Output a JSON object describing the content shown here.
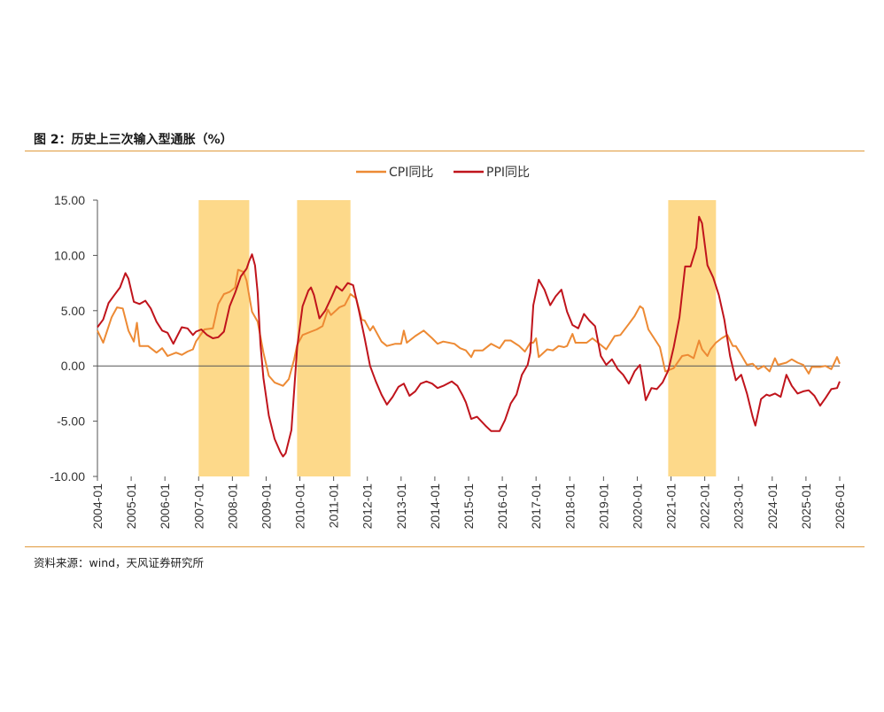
{
  "figure": {
    "title": "图 2：历史上三次输入型通胀（%）",
    "source": "资料来源：wind，天风证券研究所"
  },
  "colors": {
    "cpi": "#ed8a34",
    "ppi": "#c0141c",
    "shade": "#fdd98a",
    "rule": "#e09a3c"
  },
  "chart_data": {
    "type": "line",
    "title": "",
    "xlabel": "",
    "ylabel": "",
    "ylim": [
      -10,
      15
    ],
    "yticks": [
      "15.00",
      "10.00",
      "5.00",
      "0.00",
      "-5.00",
      "-10.00"
    ],
    "ytick_values": [
      15,
      10,
      5,
      0,
      -5,
      -10
    ],
    "xlim": [
      2004.0,
      2026.0
    ],
    "xticks": [
      "2004-01",
      "2005-01",
      "2006-01",
      "2007-01",
      "2008-01",
      "2009-01",
      "2010-01",
      "2011-01",
      "2012-01",
      "2013-01",
      "2014-01",
      "2015-01",
      "2016-01",
      "2017-01",
      "2018-01",
      "2019-01",
      "2020-01",
      "2021-01",
      "2022-01",
      "2023-01",
      "2024-01",
      "2025-01",
      "2026-01"
    ],
    "shaded_periods": [
      [
        2007.0,
        2008.5
      ],
      [
        2009.917,
        2011.5
      ],
      [
        2020.917,
        2022.333
      ]
    ],
    "legend": [
      "CPI同比",
      "PPI同比"
    ],
    "series": [
      {
        "name": "CPI同比",
        "points": [
          [
            2004.0,
            3.2
          ],
          [
            2004.17,
            2.1
          ],
          [
            2004.42,
            4.4
          ],
          [
            2004.58,
            5.3
          ],
          [
            2004.75,
            5.2
          ],
          [
            2004.92,
            3.2
          ],
          [
            2005.08,
            2.2
          ],
          [
            2005.17,
            3.9
          ],
          [
            2005.25,
            1.8
          ],
          [
            2005.5,
            1.8
          ],
          [
            2005.75,
            1.2
          ],
          [
            2005.92,
            1.6
          ],
          [
            2006.08,
            0.9
          ],
          [
            2006.33,
            1.2
          ],
          [
            2006.5,
            1.0
          ],
          [
            2006.67,
            1.3
          ],
          [
            2006.83,
            1.5
          ],
          [
            2006.92,
            2.2
          ],
          [
            2007.17,
            3.3
          ],
          [
            2007.42,
            3.4
          ],
          [
            2007.58,
            5.6
          ],
          [
            2007.75,
            6.5
          ],
          [
            2007.92,
            6.7
          ],
          [
            2008.08,
            7.1
          ],
          [
            2008.17,
            8.7
          ],
          [
            2008.33,
            8.5
          ],
          [
            2008.42,
            7.7
          ],
          [
            2008.58,
            4.9
          ],
          [
            2008.75,
            4.0
          ],
          [
            2008.92,
            1.2
          ],
          [
            2009.08,
            -0.9
          ],
          [
            2009.25,
            -1.5
          ],
          [
            2009.5,
            -1.8
          ],
          [
            2009.67,
            -1.2
          ],
          [
            2009.83,
            0.6
          ],
          [
            2009.92,
            1.9
          ],
          [
            2010.08,
            2.8
          ],
          [
            2010.33,
            3.1
          ],
          [
            2010.5,
            3.3
          ],
          [
            2010.67,
            3.6
          ],
          [
            2010.83,
            5.1
          ],
          [
            2010.92,
            4.6
          ],
          [
            2011.17,
            5.3
          ],
          [
            2011.33,
            5.5
          ],
          [
            2011.5,
            6.5
          ],
          [
            2011.67,
            6.1
          ],
          [
            2011.83,
            4.2
          ],
          [
            2011.92,
            4.1
          ],
          [
            2012.08,
            3.2
          ],
          [
            2012.17,
            3.6
          ],
          [
            2012.42,
            2.2
          ],
          [
            2012.58,
            1.8
          ],
          [
            2012.83,
            2.0
          ],
          [
            2013.0,
            2.0
          ],
          [
            2013.08,
            3.2
          ],
          [
            2013.17,
            2.1
          ],
          [
            2013.42,
            2.7
          ],
          [
            2013.67,
            3.2
          ],
          [
            2013.92,
            2.5
          ],
          [
            2014.08,
            2.0
          ],
          [
            2014.25,
            2.2
          ],
          [
            2014.58,
            2.0
          ],
          [
            2014.75,
            1.6
          ],
          [
            2014.92,
            1.4
          ],
          [
            2015.08,
            0.8
          ],
          [
            2015.17,
            1.4
          ],
          [
            2015.42,
            1.4
          ],
          [
            2015.67,
            2.0
          ],
          [
            2015.92,
            1.6
          ],
          [
            2016.08,
            2.3
          ],
          [
            2016.25,
            2.3
          ],
          [
            2016.5,
            1.8
          ],
          [
            2016.67,
            1.3
          ],
          [
            2016.83,
            2.1
          ],
          [
            2016.92,
            2.1
          ],
          [
            2017.0,
            2.5
          ],
          [
            2017.08,
            0.8
          ],
          [
            2017.33,
            1.5
          ],
          [
            2017.5,
            1.4
          ],
          [
            2017.67,
            1.8
          ],
          [
            2017.83,
            1.7
          ],
          [
            2017.92,
            1.8
          ],
          [
            2018.08,
            2.9
          ],
          [
            2018.17,
            2.1
          ],
          [
            2018.5,
            2.1
          ],
          [
            2018.67,
            2.5
          ],
          [
            2018.92,
            1.9
          ],
          [
            2019.08,
            1.5
          ],
          [
            2019.33,
            2.7
          ],
          [
            2019.5,
            2.8
          ],
          [
            2019.75,
            3.8
          ],
          [
            2019.92,
            4.5
          ],
          [
            2020.08,
            5.4
          ],
          [
            2020.17,
            5.2
          ],
          [
            2020.33,
            3.3
          ],
          [
            2020.5,
            2.5
          ],
          [
            2020.67,
            1.7
          ],
          [
            2020.83,
            -0.5
          ],
          [
            2021.0,
            -0.3
          ],
          [
            2021.08,
            -0.2
          ],
          [
            2021.33,
            0.9
          ],
          [
            2021.5,
            1.0
          ],
          [
            2021.67,
            0.7
          ],
          [
            2021.83,
            2.3
          ],
          [
            2021.92,
            1.5
          ],
          [
            2022.08,
            0.9
          ],
          [
            2022.17,
            1.5
          ],
          [
            2022.33,
            2.1
          ],
          [
            2022.5,
            2.5
          ],
          [
            2022.67,
            2.8
          ],
          [
            2022.83,
            1.8
          ],
          [
            2022.92,
            1.8
          ],
          [
            2023.08,
            1.0
          ],
          [
            2023.25,
            0.1
          ],
          [
            2023.42,
            0.2
          ],
          [
            2023.58,
            -0.3
          ],
          [
            2023.75,
            0.0
          ],
          [
            2023.92,
            -0.5
          ],
          [
            2024.08,
            0.7
          ],
          [
            2024.17,
            0.1
          ],
          [
            2024.42,
            0.3
          ],
          [
            2024.58,
            0.6
          ],
          [
            2024.75,
            0.3
          ],
          [
            2024.92,
            0.1
          ],
          [
            2025.08,
            -0.7
          ],
          [
            2025.17,
            -0.1
          ],
          [
            2025.42,
            -0.1
          ],
          [
            2025.58,
            0.0
          ],
          [
            2025.75,
            -0.3
          ],
          [
            2025.83,
            0.2
          ],
          [
            2025.92,
            0.8
          ],
          [
            2026.0,
            0.2
          ]
        ]
      },
      {
        "name": "PPI同比",
        "points": [
          [
            2004.0,
            3.5
          ],
          [
            2004.17,
            4.2
          ],
          [
            2004.33,
            5.7
          ],
          [
            2004.5,
            6.4
          ],
          [
            2004.67,
            7.1
          ],
          [
            2004.83,
            8.4
          ],
          [
            2004.92,
            7.9
          ],
          [
            2005.08,
            5.8
          ],
          [
            2005.25,
            5.6
          ],
          [
            2005.42,
            5.9
          ],
          [
            2005.58,
            5.2
          ],
          [
            2005.75,
            4.0
          ],
          [
            2005.92,
            3.2
          ],
          [
            2006.08,
            3.0
          ],
          [
            2006.25,
            2.0
          ],
          [
            2006.33,
            2.5
          ],
          [
            2006.5,
            3.5
          ],
          [
            2006.67,
            3.4
          ],
          [
            2006.83,
            2.8
          ],
          [
            2006.92,
            3.1
          ],
          [
            2007.08,
            3.3
          ],
          [
            2007.25,
            2.8
          ],
          [
            2007.42,
            2.5
          ],
          [
            2007.58,
            2.6
          ],
          [
            2007.75,
            3.1
          ],
          [
            2007.92,
            5.4
          ],
          [
            2008.08,
            6.6
          ],
          [
            2008.25,
            8.1
          ],
          [
            2008.42,
            8.8
          ],
          [
            2008.5,
            9.5
          ],
          [
            2008.58,
            10.1
          ],
          [
            2008.67,
            9.1
          ],
          [
            2008.75,
            6.6
          ],
          [
            2008.83,
            2.0
          ],
          [
            2008.92,
            -1.1
          ],
          [
            2009.08,
            -4.5
          ],
          [
            2009.25,
            -6.6
          ],
          [
            2009.42,
            -7.8
          ],
          [
            2009.5,
            -8.2
          ],
          [
            2009.58,
            -7.9
          ],
          [
            2009.75,
            -5.8
          ],
          [
            2009.92,
            1.7
          ],
          [
            2010.08,
            5.4
          ],
          [
            2010.25,
            6.8
          ],
          [
            2010.33,
            7.1
          ],
          [
            2010.42,
            6.4
          ],
          [
            2010.58,
            4.3
          ],
          [
            2010.75,
            5.0
          ],
          [
            2010.92,
            6.1
          ],
          [
            2011.08,
            7.2
          ],
          [
            2011.25,
            6.8
          ],
          [
            2011.42,
            7.5
          ],
          [
            2011.58,
            7.3
          ],
          [
            2011.75,
            5.0
          ],
          [
            2011.92,
            2.5
          ],
          [
            2012.08,
            0.0
          ],
          [
            2012.25,
            -1.4
          ],
          [
            2012.42,
            -2.6
          ],
          [
            2012.58,
            -3.5
          ],
          [
            2012.75,
            -2.8
          ],
          [
            2012.92,
            -1.9
          ],
          [
            2013.08,
            -1.6
          ],
          [
            2013.25,
            -2.7
          ],
          [
            2013.42,
            -2.3
          ],
          [
            2013.58,
            -1.6
          ],
          [
            2013.75,
            -1.4
          ],
          [
            2013.92,
            -1.6
          ],
          [
            2014.08,
            -2.0
          ],
          [
            2014.25,
            -1.8
          ],
          [
            2014.5,
            -1.4
          ],
          [
            2014.67,
            -1.8
          ],
          [
            2014.83,
            -2.7
          ],
          [
            2014.92,
            -3.3
          ],
          [
            2015.08,
            -4.8
          ],
          [
            2015.25,
            -4.6
          ],
          [
            2015.5,
            -5.4
          ],
          [
            2015.67,
            -5.9
          ],
          [
            2015.92,
            -5.9
          ],
          [
            2016.08,
            -4.9
          ],
          [
            2016.25,
            -3.4
          ],
          [
            2016.42,
            -2.6
          ],
          [
            2016.58,
            -0.8
          ],
          [
            2016.75,
            0.1
          ],
          [
            2016.83,
            1.2
          ],
          [
            2016.92,
            5.5
          ],
          [
            2017.08,
            7.8
          ],
          [
            2017.25,
            6.9
          ],
          [
            2017.42,
            5.5
          ],
          [
            2017.58,
            6.3
          ],
          [
            2017.75,
            6.9
          ],
          [
            2017.92,
            4.9
          ],
          [
            2018.08,
            3.7
          ],
          [
            2018.25,
            3.4
          ],
          [
            2018.42,
            4.7
          ],
          [
            2018.58,
            4.1
          ],
          [
            2018.75,
            3.6
          ],
          [
            2018.92,
            0.9
          ],
          [
            2019.08,
            0.1
          ],
          [
            2019.25,
            0.6
          ],
          [
            2019.42,
            -0.3
          ],
          [
            2019.58,
            -0.8
          ],
          [
            2019.75,
            -1.6
          ],
          [
            2019.92,
            -0.5
          ],
          [
            2020.08,
            0.1
          ],
          [
            2020.17,
            -1.5
          ],
          [
            2020.25,
            -3.1
          ],
          [
            2020.42,
            -2.0
          ],
          [
            2020.58,
            -2.1
          ],
          [
            2020.75,
            -1.5
          ],
          [
            2020.92,
            -0.4
          ],
          [
            2021.08,
            1.7
          ],
          [
            2021.25,
            4.4
          ],
          [
            2021.42,
            9.0
          ],
          [
            2021.58,
            9.0
          ],
          [
            2021.75,
            10.7
          ],
          [
            2021.83,
            13.5
          ],
          [
            2021.92,
            12.9
          ],
          [
            2022.08,
            9.1
          ],
          [
            2022.25,
            8.0
          ],
          [
            2022.42,
            6.4
          ],
          [
            2022.58,
            4.2
          ],
          [
            2022.75,
            0.9
          ],
          [
            2022.92,
            -1.3
          ],
          [
            2023.08,
            -0.8
          ],
          [
            2023.25,
            -2.5
          ],
          [
            2023.42,
            -4.6
          ],
          [
            2023.5,
            -5.4
          ],
          [
            2023.67,
            -3.0
          ],
          [
            2023.83,
            -2.6
          ],
          [
            2023.92,
            -2.7
          ],
          [
            2024.08,
            -2.5
          ],
          [
            2024.25,
            -2.8
          ],
          [
            2024.42,
            -0.8
          ],
          [
            2024.58,
            -1.8
          ],
          [
            2024.75,
            -2.5
          ],
          [
            2024.92,
            -2.3
          ],
          [
            2025.08,
            -2.2
          ],
          [
            2025.25,
            -2.7
          ],
          [
            2025.42,
            -3.6
          ],
          [
            2025.58,
            -2.9
          ],
          [
            2025.75,
            -2.1
          ],
          [
            2025.92,
            -2.0
          ],
          [
            2026.0,
            -1.4
          ]
        ]
      }
    ]
  }
}
